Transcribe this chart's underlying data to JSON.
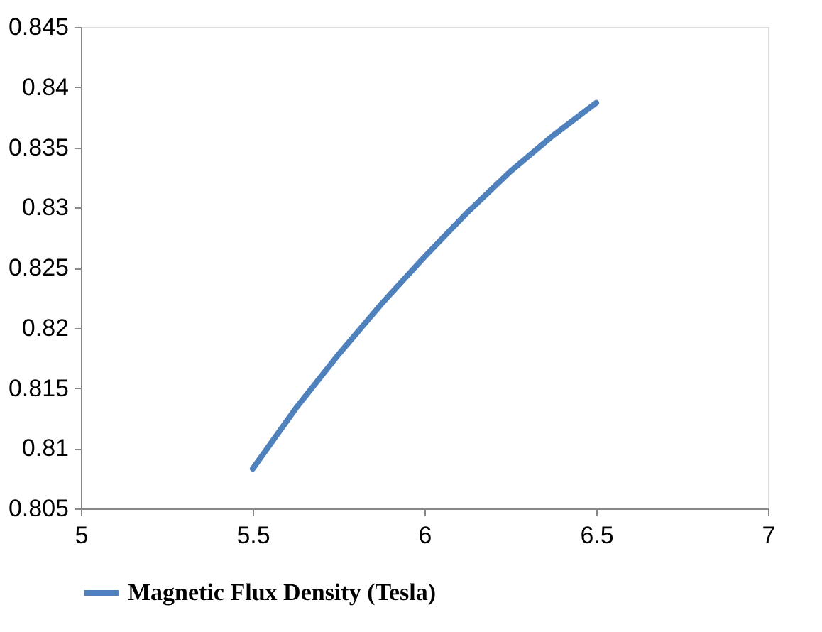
{
  "chart_data": {
    "type": "line",
    "x": [
      5.5,
      5.625,
      5.75,
      5.875,
      6,
      6.125,
      6.25,
      6.375,
      6.5
    ],
    "series": [
      {
        "name": "Magnetic Flux Density (Tesla)",
        "color": "#4f81bd",
        "values": [
          0.8083,
          0.8133,
          0.8178,
          0.822,
          0.8259,
          0.8296,
          0.833,
          0.836,
          0.8387
        ]
      }
    ],
    "xlim": [
      5,
      7
    ],
    "xticks": [
      5,
      5.5,
      6,
      6.5,
      7
    ],
    "ylim": [
      0.805,
      0.845
    ],
    "yticks": [
      0.805,
      0.81,
      0.815,
      0.82,
      0.825,
      0.83,
      0.835,
      0.84,
      0.845
    ],
    "grid": false,
    "legend": "bottom",
    "marker": "none",
    "line_style": "solid"
  }
}
